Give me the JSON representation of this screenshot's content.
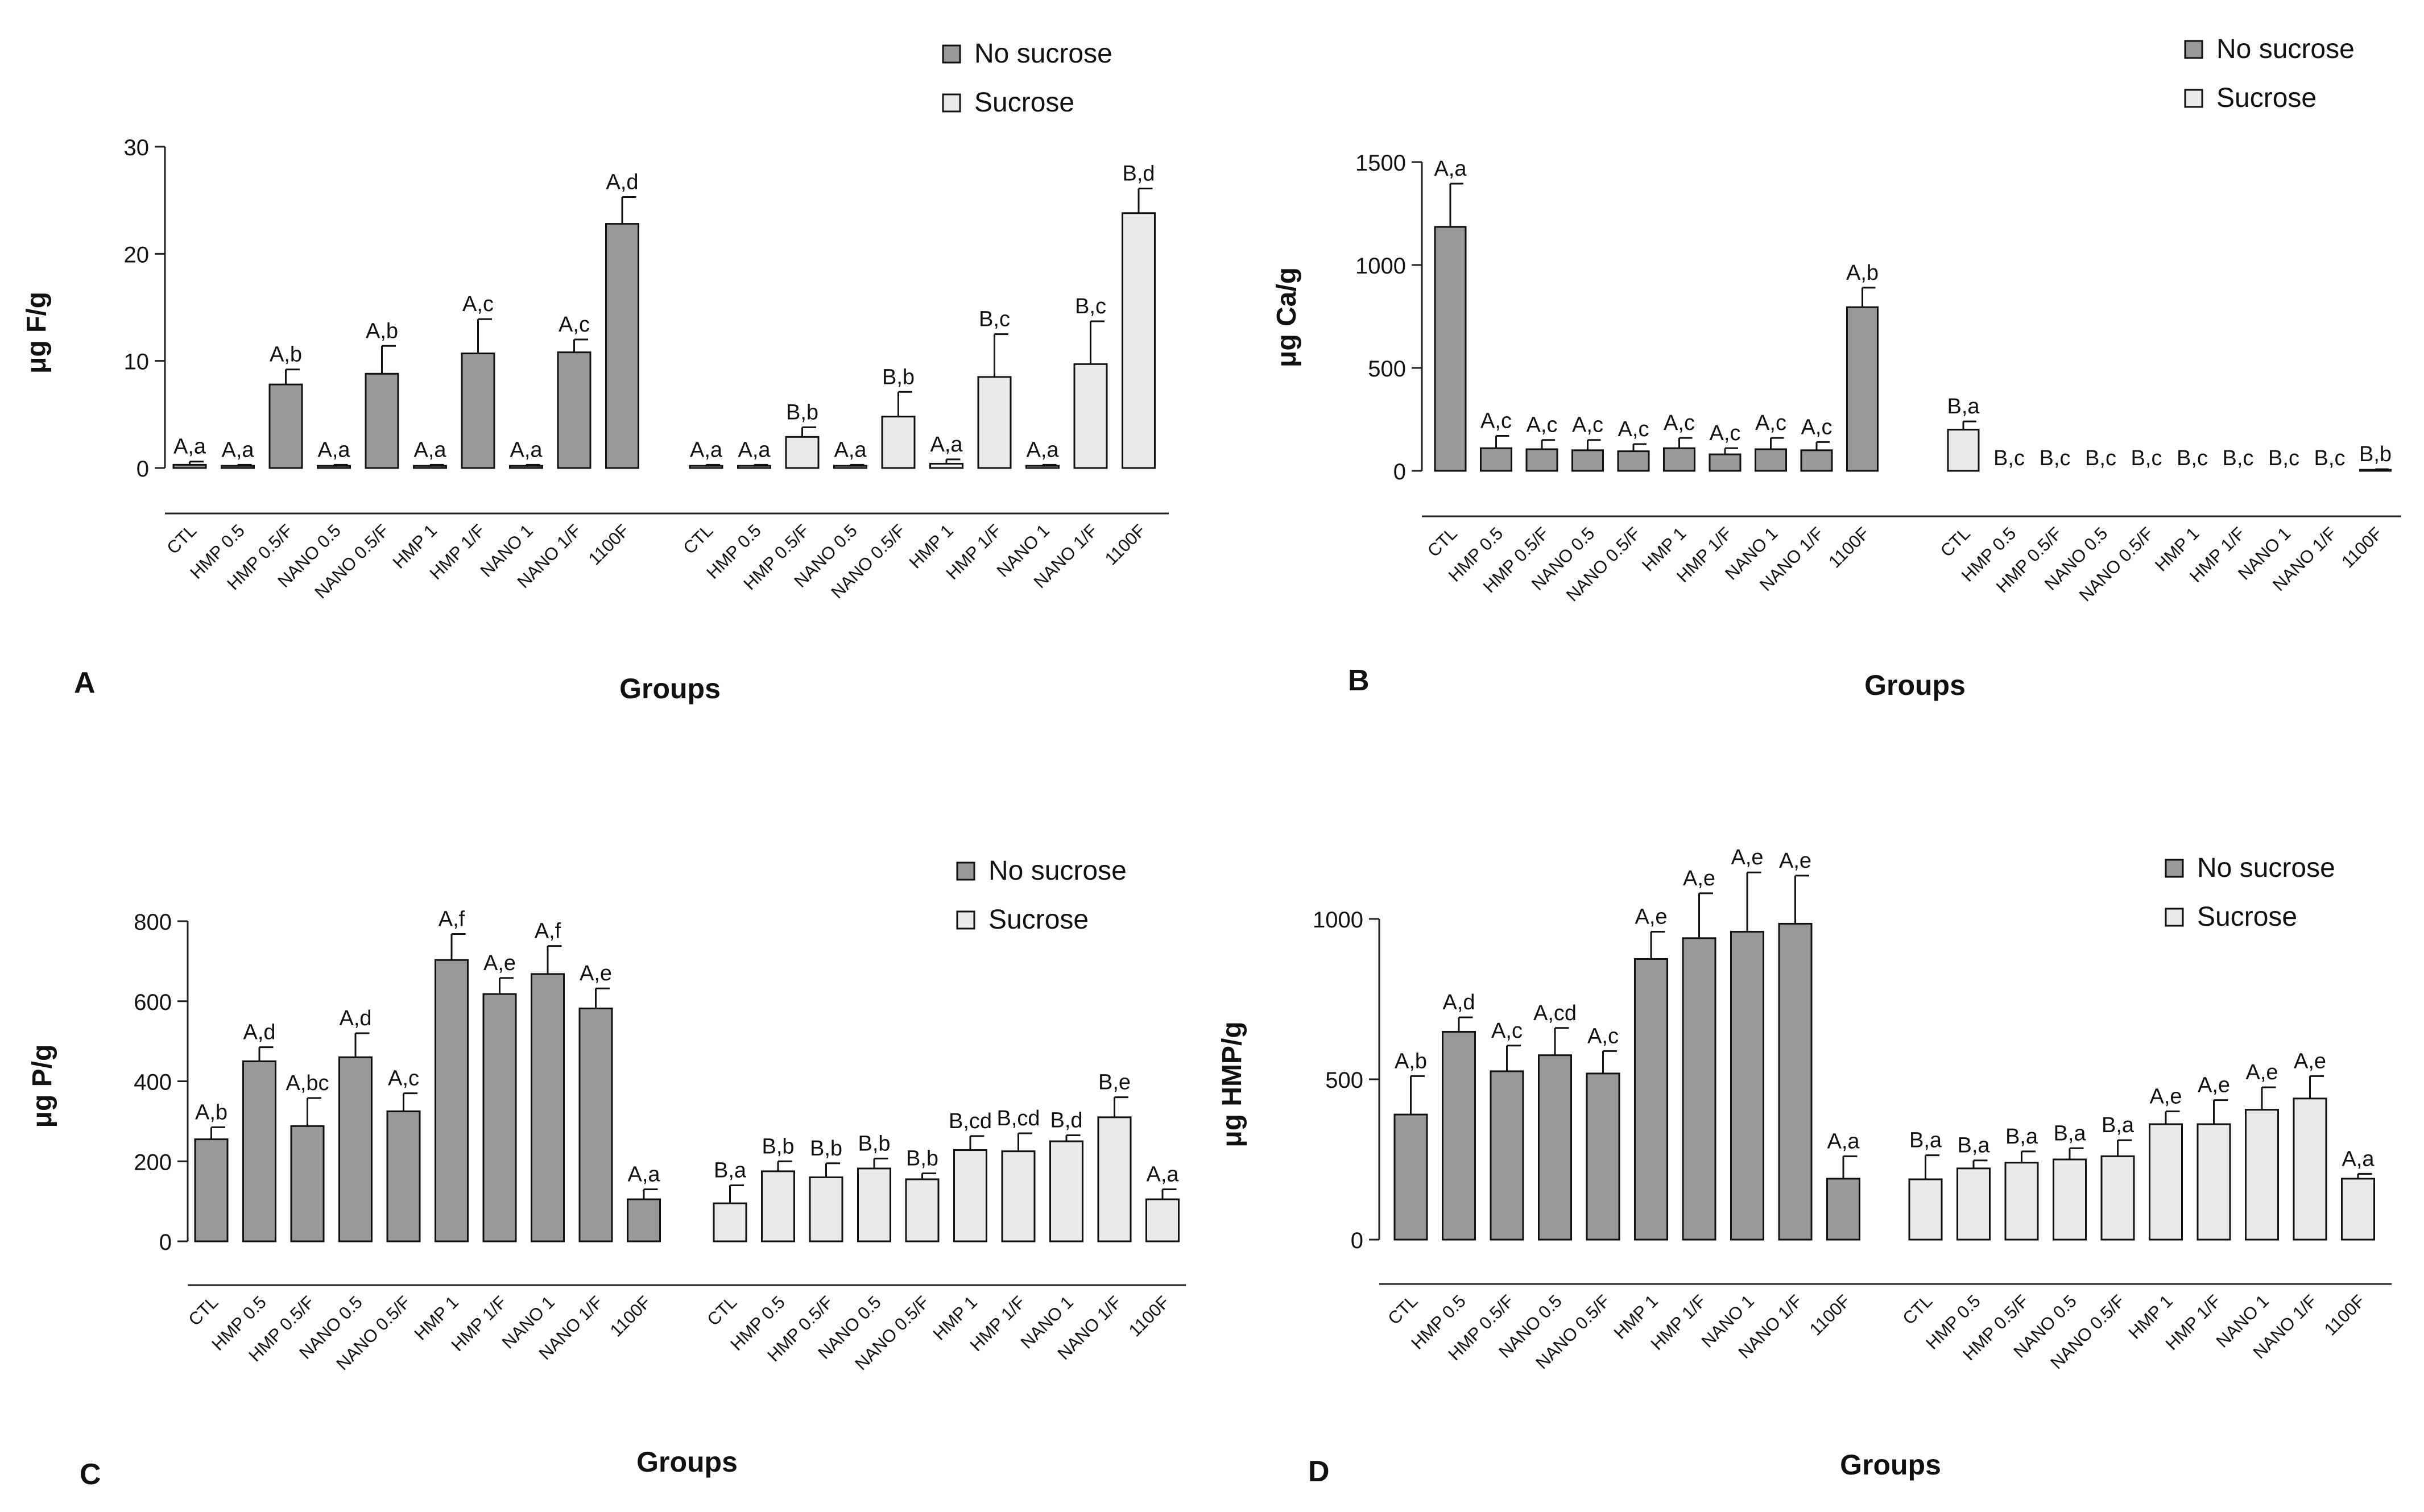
{
  "figure": {
    "legend_labels": [
      "No sucrose",
      "Sucrose"
    ],
    "xlabel": "Groups",
    "colors": {
      "no_sucrose": "#999999",
      "sucrose": "#eaeaea",
      "axis": "#222222"
    }
  },
  "chart_data": [
    {
      "type": "bar",
      "panel_label": "A",
      "ylabel": "μg F/g",
      "xlabel": "Groups",
      "ylim": [
        0,
        30
      ],
      "yticks": [
        0,
        10,
        20,
        30
      ],
      "legend": [
        "No sucrose",
        "Sucrose"
      ],
      "legend_placement": "top-right",
      "categories": [
        "CTL",
        "HMP 0.5",
        "HMP 0.5/F",
        "NANO 0.5",
        "NANO 0.5/F",
        "HMP 1",
        "HMP 1/F",
        "NANO 1",
        "NANO 1/F",
        "1100F"
      ],
      "series": [
        {
          "name": "No sucrose",
          "values": [
            0.3,
            0.2,
            7.8,
            0.2,
            8.8,
            0.2,
            10.7,
            0.2,
            10.8,
            22.8
          ],
          "errors": [
            0.3,
            0.1,
            1.4,
            0.1,
            2.6,
            0.1,
            3.2,
            0.1,
            1.2,
            2.5
          ],
          "labels": [
            "A,a",
            "A,a",
            "A,b",
            "A,a",
            "A,b",
            "A,a",
            "A,c",
            "A,a",
            "A,c",
            "A,d"
          ]
        },
        {
          "name": "Sucrose",
          "values": [
            0.2,
            0.2,
            2.9,
            0.2,
            4.8,
            0.4,
            8.5,
            0.2,
            9.7,
            23.8
          ],
          "errors": [
            0.1,
            0.1,
            0.9,
            0.1,
            2.3,
            0.4,
            4.0,
            0.1,
            4.0,
            2.3
          ],
          "labels": [
            "A,a",
            "A,a",
            "B,b",
            "A,a",
            "B,b",
            "A,a",
            "B,c",
            "A,a",
            "B,c",
            "B,d"
          ]
        }
      ]
    },
    {
      "type": "bar",
      "panel_label": "B",
      "ylabel": "μg Ca/g",
      "xlabel": "Groups",
      "ylim": [
        0,
        1500
      ],
      "yticks": [
        0,
        500,
        1000,
        1500
      ],
      "legend": [
        "No sucrose",
        "Sucrose"
      ],
      "legend_placement": "top-right",
      "categories": [
        "CTL",
        "HMP 0.5",
        "HMP 0.5/F",
        "NANO 0.5",
        "NANO 0.5/F",
        "HMP 1",
        "HMP 1/F",
        "NANO 1",
        "NANO 1/F",
        "1100F"
      ],
      "series": [
        {
          "name": "No sucrose",
          "values": [
            1185,
            110,
            105,
            100,
            95,
            110,
            80,
            105,
            100,
            795
          ],
          "errors": [
            210,
            60,
            45,
            50,
            35,
            50,
            30,
            55,
            40,
            95
          ],
          "labels": [
            "A,a",
            "A,c",
            "A,c",
            "A,c",
            "A,c",
            "A,c",
            "A,c",
            "A,c",
            "A,c",
            "A,b"
          ]
        },
        {
          "name": "Sucrose",
          "values": [
            200,
            0,
            0,
            0,
            0,
            0,
            0,
            0,
            0,
            5
          ],
          "errors": [
            40,
            0,
            0,
            0,
            0,
            0,
            0,
            0,
            0,
            3
          ],
          "labels": [
            "B,a",
            "B,c",
            "B,c",
            "B,c",
            "B,c",
            "B,c",
            "B,c",
            "B,c",
            "B,c",
            "B,b"
          ]
        }
      ]
    },
    {
      "type": "bar",
      "panel_label": "C",
      "ylabel": "μg P/g",
      "xlabel": "Groups",
      "ylim": [
        0,
        800
      ],
      "yticks": [
        0,
        200,
        400,
        600,
        800
      ],
      "legend": [
        "No sucrose",
        "Sucrose"
      ],
      "legend_placement": "top-right",
      "categories": [
        "CTL",
        "HMP 0.5",
        "HMP 0.5/F",
        "NANO 0.5",
        "NANO 0.5/F",
        "HMP 1",
        "HMP 1/F",
        "NANO 1",
        "NANO 1/F",
        "1100F"
      ],
      "series": [
        {
          "name": "No sucrose",
          "values": [
            255,
            450,
            288,
            460,
            325,
            703,
            618,
            668,
            582,
            105
          ],
          "errors": [
            30,
            35,
            70,
            60,
            45,
            65,
            40,
            70,
            50,
            25
          ],
          "labels": [
            "A,b",
            "A,d",
            "A,bc",
            "A,d",
            "A,c",
            "A,f",
            "A,e",
            "A,f",
            "A,e",
            "A,a"
          ]
        },
        {
          "name": "Sucrose",
          "values": [
            95,
            175,
            160,
            182,
            155,
            228,
            225,
            250,
            310,
            105
          ],
          "errors": [
            45,
            25,
            35,
            25,
            15,
            35,
            45,
            15,
            50,
            25
          ],
          "labels": [
            "B,a",
            "B,b",
            "B,b",
            "B,b",
            "B,b",
            "B,cd",
            "B,cd",
            "B,d",
            "B,e",
            "A,a"
          ]
        }
      ]
    },
    {
      "type": "bar",
      "panel_label": "D",
      "ylabel": "μg HMP/g",
      "xlabel": "Groups",
      "ylim": [
        0,
        1000
      ],
      "yticks": [
        0,
        500,
        1000
      ],
      "legend": [
        "No sucrose",
        "Sucrose"
      ],
      "legend_placement": "top-right",
      "categories": [
        "CTL",
        "HMP 0.5",
        "HMP 0.5/F",
        "NANO 0.5",
        "NANO 0.5/F",
        "HMP 1",
        "HMP 1/F",
        "NANO 1",
        "NANO 1/F",
        "1100F"
      ],
      "series": [
        {
          "name": "No sucrose",
          "values": [
            390,
            648,
            525,
            575,
            518,
            875,
            940,
            960,
            985,
            190
          ],
          "errors": [
            120,
            45,
            80,
            85,
            70,
            85,
            140,
            185,
            150,
            70
          ],
          "labels": [
            "A,b",
            "A,d",
            "A,c",
            "A,cd",
            "A,c",
            "A,e",
            "A,e",
            "A,e",
            "A,e",
            "A,a"
          ]
        },
        {
          "name": "Sucrose",
          "values": [
            188,
            222,
            240,
            250,
            260,
            360,
            360,
            405,
            440,
            190
          ],
          "errors": [
            75,
            25,
            35,
            35,
            50,
            40,
            75,
            70,
            70,
            15
          ],
          "labels": [
            "B,a",
            "B,a",
            "B,a",
            "B,a",
            "B,a",
            "A,e",
            "A,e",
            "A,e",
            "A,e",
            "A,a"
          ]
        }
      ]
    }
  ]
}
